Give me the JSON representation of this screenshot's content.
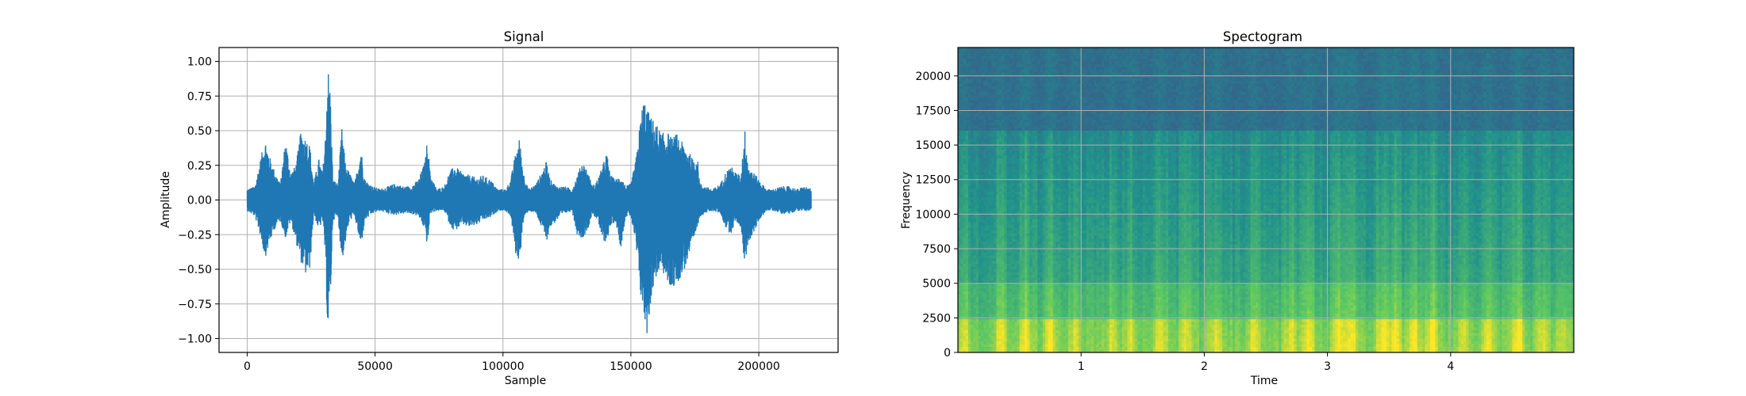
{
  "colors": {
    "signal_line": "#1f77b4",
    "grid": "#b0b0b0",
    "spectrogram_colormap": "viridis"
  },
  "chart_data": [
    {
      "type": "line",
      "title": "Signal",
      "xlabel": "Sample",
      "ylabel": "Amplitude",
      "xlim": [
        -11000,
        231000
      ],
      "ylim": [
        -1.1,
        1.1
      ],
      "xticks": [
        0,
        50000,
        100000,
        150000,
        200000
      ],
      "xtick_labels": [
        "0",
        "50000",
        "100000",
        "150000",
        "200000"
      ],
      "yticks": [
        -1.0,
        -0.75,
        -0.5,
        -0.25,
        0.0,
        0.25,
        0.5,
        0.75,
        1.0
      ],
      "ytick_labels": [
        "−1.00",
        "−0.75",
        "−0.50",
        "−0.25",
        "0.00",
        "0.25",
        "0.50",
        "0.75",
        "1.00"
      ],
      "grid": true,
      "series": [
        {
          "x_range": [
            0,
            220500
          ],
          "envelope_points": [
            [
              0,
              0.08,
              -0.08
            ],
            [
              3000,
              0.1,
              -0.12
            ],
            [
              5000,
              0.28,
              -0.25
            ],
            [
              7000,
              0.45,
              -0.42
            ],
            [
              9000,
              0.3,
              -0.3
            ],
            [
              11000,
              0.2,
              -0.2
            ],
            [
              13000,
              0.12,
              -0.15
            ],
            [
              15000,
              0.45,
              -0.28
            ],
            [
              17000,
              0.2,
              -0.15
            ],
            [
              19000,
              0.25,
              -0.3
            ],
            [
              21000,
              0.5,
              -0.45
            ],
            [
              23000,
              0.45,
              -0.55
            ],
            [
              24500,
              0.4,
              -0.5
            ],
            [
              26000,
              0.12,
              -0.1
            ],
            [
              28000,
              0.3,
              -0.22
            ],
            [
              29500,
              0.2,
              -0.15
            ],
            [
              30500,
              0.45,
              -0.4
            ],
            [
              31500,
              0.99,
              -0.98
            ],
            [
              32500,
              0.8,
              -0.75
            ],
            [
              33500,
              0.15,
              -0.15
            ],
            [
              35500,
              0.12,
              -0.12
            ],
            [
              37000,
              0.52,
              -0.45
            ],
            [
              38500,
              0.25,
              -0.3
            ],
            [
              40000,
              0.2,
              -0.15
            ],
            [
              42000,
              0.12,
              -0.12
            ],
            [
              44500,
              0.38,
              -0.35
            ],
            [
              46000,
              0.15,
              -0.15
            ],
            [
              49000,
              0.1,
              -0.1
            ],
            [
              52000,
              0.08,
              -0.08
            ],
            [
              55000,
              0.1,
              -0.1
            ],
            [
              58000,
              0.12,
              -0.11
            ],
            [
              61000,
              0.1,
              -0.1
            ],
            [
              64000,
              0.1,
              -0.1
            ],
            [
              67000,
              0.15,
              -0.12
            ],
            [
              69500,
              0.28,
              -0.22
            ],
            [
              70500,
              0.45,
              -0.35
            ],
            [
              71500,
              0.2,
              -0.1
            ],
            [
              74000,
              0.08,
              -0.08
            ],
            [
              77000,
              0.1,
              -0.08
            ],
            [
              79000,
              0.2,
              -0.17
            ],
            [
              81000,
              0.25,
              -0.23
            ],
            [
              84000,
              0.2,
              -0.18
            ],
            [
              87000,
              0.18,
              -0.2
            ],
            [
              90000,
              0.16,
              -0.18
            ],
            [
              92000,
              0.18,
              -0.15
            ],
            [
              95000,
              0.15,
              -0.13
            ],
            [
              98000,
              0.08,
              -0.08
            ],
            [
              101000,
              0.08,
              -0.08
            ],
            [
              103000,
              0.15,
              -0.12
            ],
            [
              105000,
              0.35,
              -0.4
            ],
            [
              106500,
              0.45,
              -0.45
            ],
            [
              108000,
              0.2,
              -0.15
            ],
            [
              110000,
              0.08,
              -0.08
            ],
            [
              113000,
              0.12,
              -0.1
            ],
            [
              115000,
              0.2,
              -0.2
            ],
            [
              117000,
              0.28,
              -0.3
            ],
            [
              118500,
              0.15,
              -0.2
            ],
            [
              121000,
              0.1,
              -0.15
            ],
            [
              124000,
              0.1,
              -0.1
            ],
            [
              127000,
              0.08,
              -0.08
            ],
            [
              129000,
              0.18,
              -0.25
            ],
            [
              131000,
              0.28,
              -0.28
            ],
            [
              133000,
              0.22,
              -0.22
            ],
            [
              135000,
              0.1,
              -0.1
            ],
            [
              137000,
              0.15,
              -0.15
            ],
            [
              139000,
              0.25,
              -0.3
            ],
            [
              140500,
              0.35,
              -0.3
            ],
            [
              142000,
              0.18,
              -0.2
            ],
            [
              144000,
              0.15,
              -0.15
            ],
            [
              146000,
              0.18,
              -0.35
            ],
            [
              148000,
              0.1,
              -0.12
            ],
            [
              150000,
              0.12,
              -0.12
            ],
            [
              152000,
              0.3,
              -0.35
            ],
            [
              153500,
              0.55,
              -0.65
            ],
            [
              155000,
              0.75,
              -0.85
            ],
            [
              156500,
              0.65,
              -0.99
            ],
            [
              158000,
              0.6,
              -0.7
            ],
            [
              160000,
              0.55,
              -0.55
            ],
            [
              162000,
              0.48,
              -0.5
            ],
            [
              164000,
              0.5,
              -0.6
            ],
            [
              166000,
              0.45,
              -0.65
            ],
            [
              168000,
              0.48,
              -0.6
            ],
            [
              170000,
              0.42,
              -0.55
            ],
            [
              172000,
              0.38,
              -0.45
            ],
            [
              174000,
              0.3,
              -0.35
            ],
            [
              176000,
              0.32,
              -0.2
            ],
            [
              177000,
              0.12,
              -0.12
            ],
            [
              179000,
              0.1,
              -0.1
            ],
            [
              182000,
              0.08,
              -0.08
            ],
            [
              185000,
              0.12,
              -0.1
            ],
            [
              187000,
              0.2,
              -0.2
            ],
            [
              189000,
              0.25,
              -0.25
            ],
            [
              191000,
              0.2,
              -0.15
            ],
            [
              193000,
              0.18,
              -0.2
            ],
            [
              194500,
              0.52,
              -0.48
            ],
            [
              196000,
              0.25,
              -0.3
            ],
            [
              198000,
              0.2,
              -0.25
            ],
            [
              200000,
              0.15,
              -0.15
            ],
            [
              203000,
              0.08,
              -0.08
            ],
            [
              206000,
              0.08,
              -0.08
            ],
            [
              209000,
              0.1,
              -0.1
            ],
            [
              212000,
              0.1,
              -0.1
            ],
            [
              215000,
              0.08,
              -0.08
            ],
            [
              218000,
              0.1,
              -0.08
            ],
            [
              220500,
              0.08,
              -0.08
            ]
          ]
        }
      ]
    },
    {
      "type": "heatmap",
      "title": "Spectogram",
      "xlabel": "Time",
      "ylabel": "Frequency",
      "xlim": [
        0,
        5.0
      ],
      "ylim": [
        0,
        22050
      ],
      "xticks": [
        1,
        2,
        3,
        4
      ],
      "xtick_labels": [
        "1",
        "2",
        "3",
        "4"
      ],
      "yticks": [
        0,
        2500,
        5000,
        7500,
        10000,
        12500,
        15000,
        17500,
        20000
      ],
      "ytick_labels": [
        "0",
        "2500",
        "5000",
        "7500",
        "10000",
        "12500",
        "15000",
        "17500",
        "20000"
      ],
      "grid": true,
      "colormap": "viridis",
      "energy_bursts": [
        [
          0.05,
          0.6
        ],
        [
          0.35,
          0.65
        ],
        [
          0.55,
          0.85
        ],
        [
          0.75,
          0.8
        ],
        [
          0.95,
          0.6
        ],
        [
          1.25,
          0.55
        ],
        [
          1.4,
          0.55
        ],
        [
          1.65,
          0.7
        ],
        [
          1.85,
          0.55
        ],
        [
          2.1,
          0.75
        ],
        [
          2.4,
          0.6
        ],
        [
          2.7,
          0.65
        ],
        [
          2.85,
          0.7
        ],
        [
          3.1,
          0.85
        ],
        [
          3.2,
          0.75
        ],
        [
          3.45,
          0.9
        ],
        [
          3.55,
          0.8
        ],
        [
          3.7,
          0.85
        ],
        [
          3.85,
          0.9
        ],
        [
          4.1,
          0.6
        ],
        [
          4.3,
          0.7
        ],
        [
          4.55,
          0.85
        ],
        [
          4.75,
          0.6
        ],
        [
          4.9,
          0.55
        ]
      ]
    }
  ]
}
